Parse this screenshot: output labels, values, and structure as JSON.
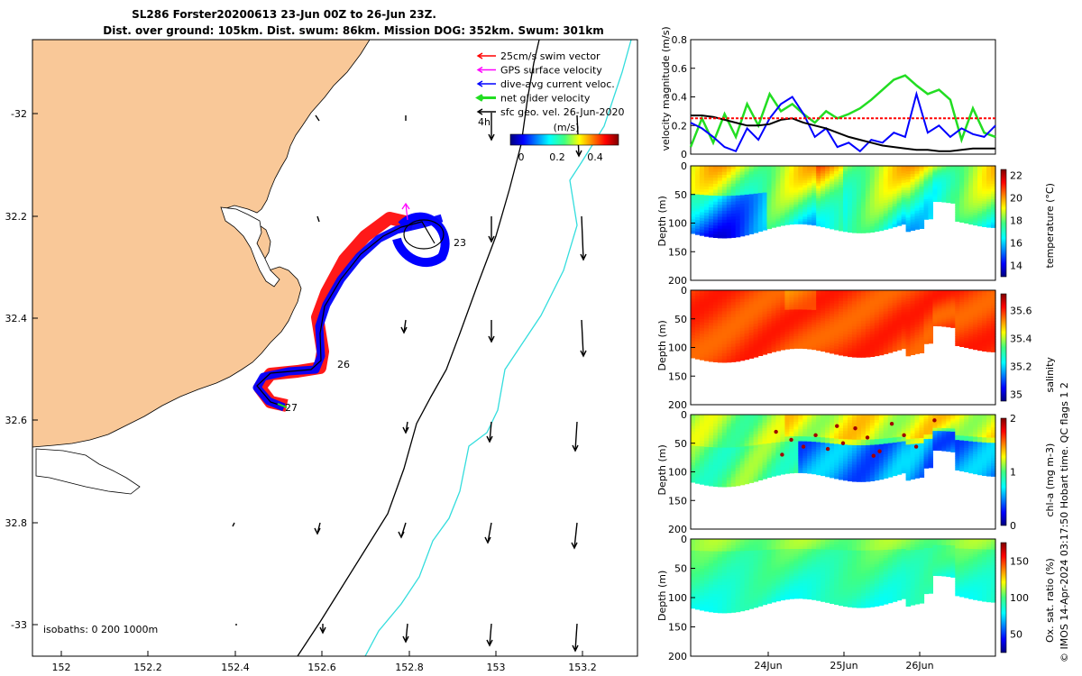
{
  "header": {
    "line1": "SL286 Forster20200613 23-Jun 00Z to 26-Jun 23Z.",
    "line2": "Dist. over ground: 105km. Dist. swum: 86km. Mission DOG: 352km. Swum: 301km"
  },
  "colors": {
    "land": "#f9c898",
    "track_red": "#ff0000",
    "track_blue": "#0000ff",
    "gps_magenta": "#ff00ff",
    "net_green": "#22dd22",
    "isobath_cyan": "#33dddd"
  },
  "map": {
    "x_ticks": [
      "152",
      "152.2",
      "152.4",
      "152.6",
      "152.8",
      "153",
      "153.2"
    ],
    "y_ticks": [
      "-32",
      "32.2",
      "32.4",
      "32.6",
      "32.8",
      "-33"
    ],
    "legend": [
      "25cm/s swim vector",
      "GPS surface velocity",
      "dive-avg current veloc.",
      "net glider velocity",
      "sfc geo. vel. 26-Jun-2020"
    ],
    "legend_colors": [
      "#ff0000",
      "#ff00ff",
      "#0000ff",
      "#22dd22",
      "#000000"
    ],
    "colorbar_title": "(m/s)",
    "colorbar_ticks": [
      "0",
      "0.2",
      "0.4"
    ],
    "marker_4h": "4h",
    "day_labels": [
      "23",
      "26",
      "27"
    ],
    "isobaths_label": "isobaths: 0   200  1000m"
  },
  "chart_data": [
    {
      "type": "line",
      "name": "velocity",
      "ylabel": "velocity magnitude (m/s)",
      "ylim": [
        0,
        0.8
      ],
      "y_ticks": [
        "0",
        "0.2",
        "0.4",
        "0.6",
        "0.8"
      ],
      "series": [
        {
          "color": "#22dd22",
          "values": [
            0.05,
            0.25,
            0.08,
            0.28,
            0.12,
            0.35,
            0.2,
            0.42,
            0.3,
            0.35,
            0.28,
            0.22,
            0.3,
            0.25,
            0.28,
            0.32,
            0.38,
            0.45,
            0.52,
            0.55,
            0.48,
            0.42,
            0.45,
            0.38,
            0.1,
            0.32,
            0.15,
            0.12
          ]
        },
        {
          "color": "#0000ff",
          "values": [
            0.22,
            0.18,
            0.12,
            0.05,
            0.02,
            0.18,
            0.1,
            0.25,
            0.35,
            0.4,
            0.28,
            0.12,
            0.18,
            0.05,
            0.08,
            0.02,
            0.1,
            0.08,
            0.15,
            0.12,
            0.42,
            0.15,
            0.2,
            0.12,
            0.18,
            0.14,
            0.12,
            0.2
          ]
        },
        {
          "color": "#000000",
          "values": [
            0.27,
            0.27,
            0.26,
            0.24,
            0.22,
            0.2,
            0.2,
            0.21,
            0.24,
            0.25,
            0.22,
            0.2,
            0.18,
            0.15,
            0.12,
            0.1,
            0.08,
            0.06,
            0.05,
            0.04,
            0.03,
            0.03,
            0.02,
            0.02,
            0.03,
            0.04,
            0.04,
            0.04
          ]
        },
        {
          "color": "#ff0000",
          "values": [
            0.25,
            0.25,
            0.25,
            0.25,
            0.25,
            0.25,
            0.25,
            0.25,
            0.25,
            0.25,
            0.25,
            0.25,
            0.25,
            0.25,
            0.25,
            0.25,
            0.25,
            0.25,
            0.25,
            0.25,
            0.25,
            0.25,
            0.25,
            0.25,
            0.25,
            0.25,
            0.25,
            0.25
          ]
        }
      ]
    },
    {
      "type": "heatmap",
      "name": "temperature",
      "ylabel": "Depth (m)",
      "clabel": "temperature (°C)",
      "y_ticks": [
        "0",
        "50",
        "100",
        "150",
        "200"
      ],
      "ylim": [
        0,
        200
      ],
      "c_ticks": [
        "14",
        "16",
        "18",
        "20",
        "22"
      ],
      "clim": [
        13,
        22.5
      ]
    },
    {
      "type": "heatmap",
      "name": "salinity",
      "ylabel": "Depth (m)",
      "clabel": "salinity",
      "y_ticks": [
        "0",
        "50",
        "100",
        "150",
        "200"
      ],
      "ylim": [
        0,
        200
      ],
      "c_ticks": [
        "35",
        "35.2",
        "35.4",
        "35.6"
      ],
      "clim": [
        34.95,
        35.72
      ]
    },
    {
      "type": "heatmap",
      "name": "chl-a",
      "ylabel": "Depth (m)",
      "clabel": "chl-a (mg m-3)",
      "y_ticks": [
        "0",
        "50",
        "100",
        "150",
        "200"
      ],
      "ylim": [
        0,
        200
      ],
      "c_ticks": [
        "0",
        "1",
        "2"
      ],
      "clim": [
        0,
        2
      ]
    },
    {
      "type": "heatmap",
      "name": "oxygen",
      "ylabel": "Depth (m)",
      "clabel": "Ox. sat. ratio (%)",
      "y_ticks": [
        "0",
        "50",
        "100",
        "150",
        "200"
      ],
      "ylim": [
        0,
        200
      ],
      "c_ticks": [
        "50",
        "100",
        "150"
      ],
      "clim": [
        25,
        175
      ],
      "x_ticks": [
        "24Jun",
        "25Jun",
        "26Jun"
      ]
    }
  ],
  "footer": {
    "credit": "© IMOS 14-Apr-2024 03:17:50 Hobart time. QC flags 1  2"
  }
}
